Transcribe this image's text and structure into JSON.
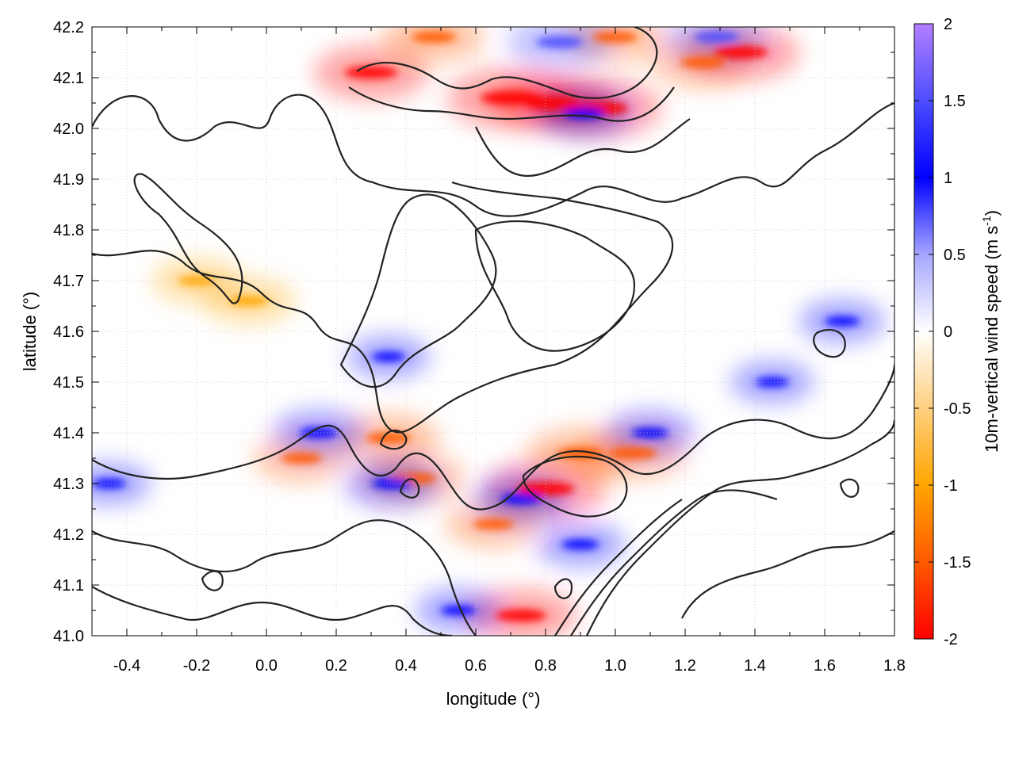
{
  "chart_data": {
    "type": "heatmap",
    "title": "",
    "xlabel": "longitude (°)",
    "ylabel": "latitude (°)",
    "xlim": [
      -0.5,
      1.8
    ],
    "ylim": [
      41.0,
      42.2
    ],
    "x_ticks": [
      "-0.4",
      "-0.2",
      "0.0",
      "0.2",
      "0.4",
      "0.6",
      "0.8",
      "1.0",
      "1.2",
      "1.4",
      "1.6",
      "1.8"
    ],
    "y_ticks": [
      "41.0",
      "41.1",
      "41.2",
      "41.3",
      "41.4",
      "41.5",
      "41.6",
      "41.7",
      "41.8",
      "41.9",
      "42.0",
      "42.1",
      "42.2"
    ],
    "grid": true,
    "colorbar": {
      "label": "10m-vertical wind speed (m s-1)",
      "label_main": "10m-vertical wind speed (m s",
      "label_sup": "-1",
      "label_end": ")",
      "range": [
        -2,
        2
      ],
      "ticks": [
        "2",
        "1.5",
        "1",
        "0.5",
        "0",
        "-0.5",
        "-1",
        "-1.5",
        "-2"
      ],
      "position": "right",
      "stops": [
        {
          "value": -2.0,
          "color": "#ff0000"
        },
        {
          "value": -1.5,
          "color": "#ff5a00"
        },
        {
          "value": -1.0,
          "color": "#ffa500"
        },
        {
          "value": -0.5,
          "color": "#ffd080"
        },
        {
          "value": 0.0,
          "color": "#ffffff"
        },
        {
          "value": 0.5,
          "color": "#a6a6ff"
        },
        {
          "value": 1.0,
          "color": "#0000ff"
        },
        {
          "value": 1.5,
          "color": "#4d4dff"
        },
        {
          "value": 2.0,
          "color": "#b27fff"
        }
      ]
    },
    "contour_color": "#222222",
    "hotspots": [
      {
        "lon": 0.7,
        "lat": 42.06,
        "value": -2.0
      },
      {
        "lon": 0.82,
        "lat": 42.05,
        "value": -1.8
      },
      {
        "lon": 0.95,
        "lat": 42.04,
        "value": -2.0
      },
      {
        "lon": 0.3,
        "lat": 42.11,
        "value": -1.6
      },
      {
        "lon": 1.36,
        "lat": 42.15,
        "value": -1.7
      },
      {
        "lon": 1.25,
        "lat": 42.13,
        "value": -1.2
      },
      {
        "lon": 0.48,
        "lat": 42.18,
        "value": -1.2
      },
      {
        "lon": 1.0,
        "lat": 42.18,
        "value": -1.2
      },
      {
        "lon": 0.8,
        "lat": 41.29,
        "value": -1.9
      },
      {
        "lon": 0.9,
        "lat": 41.36,
        "value": -1.3
      },
      {
        "lon": 1.05,
        "lat": 41.36,
        "value": -1.4
      },
      {
        "lon": 0.73,
        "lat": 41.04,
        "value": -1.5
      },
      {
        "lon": 0.35,
        "lat": 41.39,
        "value": -1.2
      },
      {
        "lon": 0.42,
        "lat": 41.31,
        "value": -1.3
      },
      {
        "lon": 0.1,
        "lat": 41.35,
        "value": -1.0
      },
      {
        "lon": -0.2,
        "lat": 41.7,
        "value": -0.8
      },
      {
        "lon": -0.05,
        "lat": 41.66,
        "value": -0.9
      },
      {
        "lon": 0.65,
        "lat": 41.22,
        "value": -1.0
      },
      {
        "lon": 0.84,
        "lat": 42.17,
        "value": 1.3
      },
      {
        "lon": 1.29,
        "lat": 42.18,
        "value": 1.2
      },
      {
        "lon": 0.91,
        "lat": 42.03,
        "value": 1.0
      },
      {
        "lon": 0.36,
        "lat": 41.3,
        "value": 1.0
      },
      {
        "lon": 0.73,
        "lat": 41.27,
        "value": 1.0
      },
      {
        "lon": 0.15,
        "lat": 41.4,
        "value": 0.9
      },
      {
        "lon": 0.9,
        "lat": 41.18,
        "value": 0.8
      },
      {
        "lon": 0.55,
        "lat": 41.05,
        "value": 0.7
      },
      {
        "lon": 1.1,
        "lat": 41.4,
        "value": 0.8
      },
      {
        "lon": 1.45,
        "lat": 41.5,
        "value": 0.6
      },
      {
        "lon": 1.65,
        "lat": 41.62,
        "value": 0.7
      },
      {
        "lon": 0.35,
        "lat": 41.55,
        "value": 0.6
      },
      {
        "lon": -0.45,
        "lat": 41.3,
        "value": 0.6
      }
    ]
  }
}
